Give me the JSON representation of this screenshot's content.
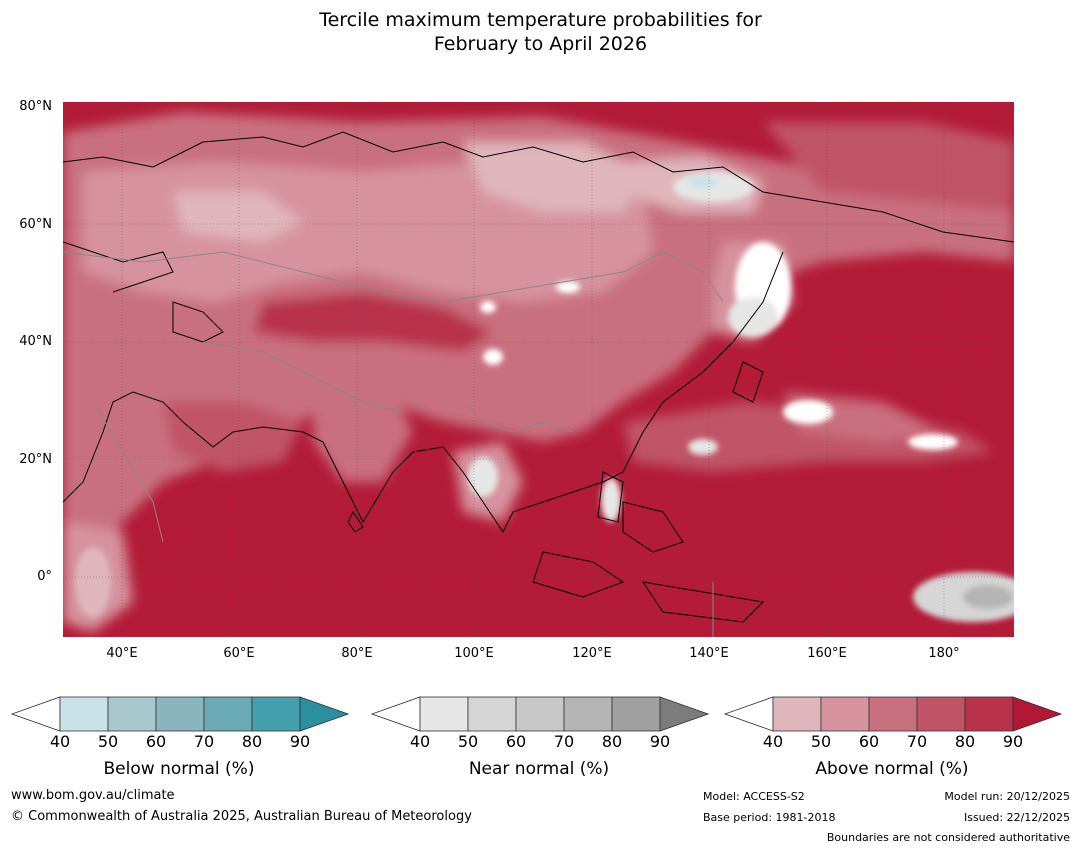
{
  "title_line1": "Tercile maximum temperature probabilities for",
  "title_line2": "February to April 2026",
  "map": {
    "lat_labels": [
      "80°N",
      "60°N",
      "40°N",
      "20°N",
      "0°"
    ],
    "lon_labels": [
      "40°E",
      "60°E",
      "80°E",
      "100°E",
      "120°E",
      "140°E",
      "160°E",
      "180°"
    ],
    "lon_range": [
      30,
      192
    ],
    "lat_range": [
      -10,
      81
    ],
    "ocean_color": "#b31b37"
  },
  "colorbars": [
    {
      "name": "below",
      "title": "Below normal (%)",
      "ticks": [
        "40",
        "50",
        "60",
        "70",
        "80",
        "90"
      ],
      "colors": [
        "#ffffff",
        "#c9e2e8",
        "#a8c8ce",
        "#8ab5bf",
        "#6aaab5",
        "#44a0ad",
        "#2a8f9e"
      ]
    },
    {
      "name": "near",
      "title": "Near normal (%)",
      "ticks": [
        "40",
        "50",
        "60",
        "70",
        "80",
        "90"
      ],
      "colors": [
        "#ffffff",
        "#e6e6e6",
        "#d6d6d6",
        "#c8c8c8",
        "#b4b4b4",
        "#a0a0a0",
        "#7c7c7c"
      ]
    },
    {
      "name": "above",
      "title": "Above normal (%)",
      "ticks": [
        "40",
        "50",
        "60",
        "70",
        "80",
        "90"
      ],
      "colors": [
        "#ffffff",
        "#e0b6bd",
        "#d6939f",
        "#c9707f",
        "#c05466",
        "#b83349",
        "#b01836"
      ]
    }
  ],
  "footer": {
    "website": "www.bom.gov.au/climate",
    "copyright": "© Commonwealth of Australia 2025, Australian Bureau of Meteorology",
    "model": "Model: ACCESS-S2",
    "base_period": "Base period: 1981-2018",
    "model_run": "Model run: 20/12/2025",
    "issued": "Issued: 22/12/2025",
    "disclaimer": "Boundaries are not considered authoritative"
  }
}
